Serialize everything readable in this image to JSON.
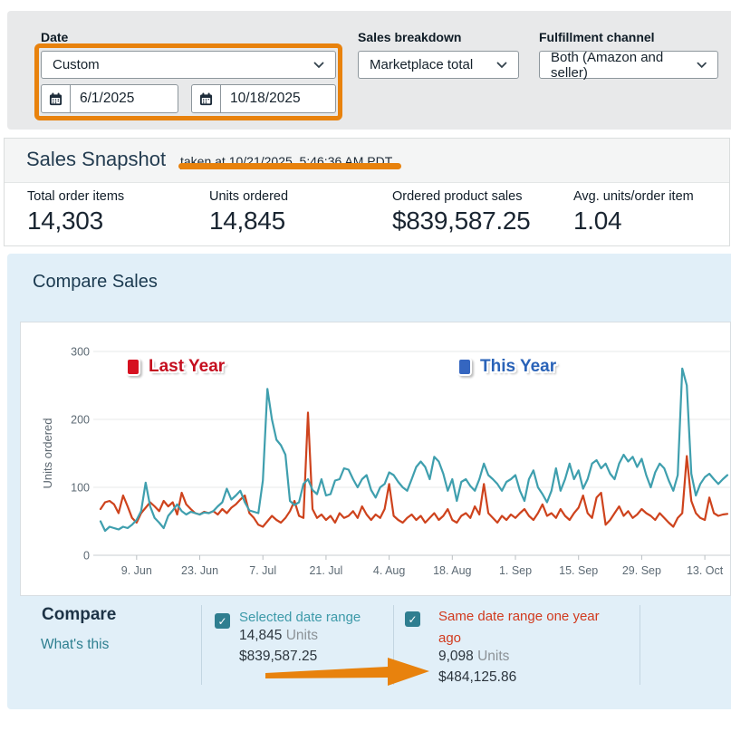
{
  "filters": {
    "date": {
      "label": "Date",
      "dropdown_value": "Custom",
      "start": "6/1/2025",
      "end": "10/18/2025"
    },
    "sales_breakdown": {
      "label": "Sales breakdown",
      "value": "Marketplace total"
    },
    "fulfillment": {
      "label": "Fulfillment channel",
      "value": "Both (Amazon and seller)"
    }
  },
  "snapshot": {
    "title": "Sales Snapshot",
    "taken_at": "taken at 10/21/2025, 5:46:36 AM PDT",
    "metrics": [
      {
        "label": "Total order items",
        "value": "14,303"
      },
      {
        "label": "Units ordered",
        "value": "14,845"
      },
      {
        "label": "Ordered product sales",
        "value": "$839,587.25"
      },
      {
        "label": "Avg. units/order item",
        "value": "1.04"
      }
    ]
  },
  "compare_sales": {
    "title": "Compare Sales",
    "legend": {
      "last_year": "Last Year",
      "this_year": "This Year"
    },
    "chart_data": {
      "type": "line",
      "title": "Compare Sales",
      "ylabel": "Units ordered",
      "ylim": [
        0,
        300
      ],
      "yticks": [
        0,
        100,
        200,
        300
      ],
      "grid": "horizontal",
      "x_start_date": "6/1/2025",
      "x_end_date": "10/18/2025",
      "x_range_days": 140,
      "x_tick_labels": [
        "9. Jun",
        "23. Jun",
        "7. Jul",
        "21. Jul",
        "4. Aug",
        "18. Aug",
        "1. Sep",
        "15. Sep",
        "29. Sep",
        "13. Oct"
      ],
      "x_tick_days": [
        8,
        22,
        36,
        50,
        64,
        78,
        92,
        106,
        120,
        134
      ],
      "series": [
        {
          "name": "Last Year",
          "color": "#ce431d",
          "values": [
            68,
            78,
            80,
            75,
            62,
            88,
            72,
            55,
            48,
            62,
            70,
            78,
            72,
            65,
            80,
            72,
            78,
            60,
            92,
            75,
            68,
            62,
            60,
            64,
            62,
            65,
            60,
            68,
            62,
            70,
            75,
            82,
            88,
            62,
            55,
            45,
            42,
            50,
            58,
            52,
            48,
            55,
            65,
            80,
            58,
            55,
            210,
            68,
            55,
            60,
            52,
            58,
            48,
            62,
            55,
            58,
            65,
            55,
            72,
            60,
            52,
            60,
            55,
            68,
            105,
            58,
            52,
            48,
            55,
            60,
            52,
            58,
            48,
            55,
            62,
            52,
            58,
            68,
            52,
            48,
            58,
            62,
            55,
            72,
            60,
            105,
            62,
            55,
            48,
            58,
            52,
            60,
            55,
            62,
            68,
            58,
            52,
            62,
            75,
            58,
            62,
            55,
            68,
            58,
            52,
            62,
            70,
            88,
            62,
            55,
            85,
            92,
            45,
            52,
            62,
            72,
            58,
            65,
            55,
            60,
            68,
            62,
            58,
            52,
            62,
            55,
            48,
            42,
            55,
            62,
            146,
            80,
            62,
            55,
            52,
            85,
            62,
            58,
            60,
            61
          ]
        },
        {
          "name": "This Year",
          "color": "#3f9fae",
          "values": [
            50,
            36,
            42,
            40,
            38,
            42,
            40,
            45,
            52,
            65,
            107,
            72,
            55,
            48,
            40,
            58,
            66,
            75,
            65,
            60,
            64,
            62,
            60,
            63,
            62,
            65,
            72,
            78,
            98,
            82,
            88,
            95,
            78,
            66,
            64,
            62,
            110,
            245,
            200,
            170,
            162,
            148,
            80,
            74,
            78,
            105,
            112,
            96,
            90,
            112,
            88,
            90,
            110,
            112,
            128,
            126,
            112,
            100,
            112,
            118,
            96,
            85,
            100,
            105,
            122,
            118,
            108,
            100,
            95,
            112,
            130,
            138,
            130,
            112,
            145,
            138,
            120,
            95,
            112,
            80,
            108,
            112,
            102,
            95,
            112,
            135,
            118,
            112,
            105,
            95,
            108,
            112,
            118,
            95,
            80,
            112,
            125,
            100,
            90,
            78,
            95,
            128,
            95,
            112,
            135,
            112,
            125,
            98,
            112,
            135,
            140,
            128,
            135,
            120,
            112,
            135,
            148,
            138,
            145,
            130,
            142,
            118,
            100,
            122,
            135,
            128,
            110,
            95,
            118,
            275,
            250,
            120,
            88,
            105,
            115,
            120,
            112,
            105,
            112,
            118
          ]
        }
      ]
    }
  },
  "compare": {
    "title": "Compare",
    "whats_this": "What's this",
    "selected": {
      "label": "Selected date range",
      "units": "14,845",
      "units_word": "Units",
      "sales": "$839,587.25"
    },
    "previous": {
      "label": "Same date range one year ago",
      "units": "9,098",
      "units_word": "Units",
      "sales": "$484,125.86"
    }
  },
  "colors": {
    "annotation_orange": "#e8820d",
    "this_year_line": "#3f9fae",
    "last_year_line": "#ce431d",
    "legend_this_year": "#3566c0",
    "legend_last_year": "#d61120",
    "checkbox_teal": "#2f7e90",
    "link_teal": "#2e7f90",
    "selected_text_teal": "#3d9aa9",
    "previous_text_red": "#d13a1e",
    "filter_panel_gray": "#e8e9ea",
    "compare_panel_blue": "#e1eff8"
  }
}
